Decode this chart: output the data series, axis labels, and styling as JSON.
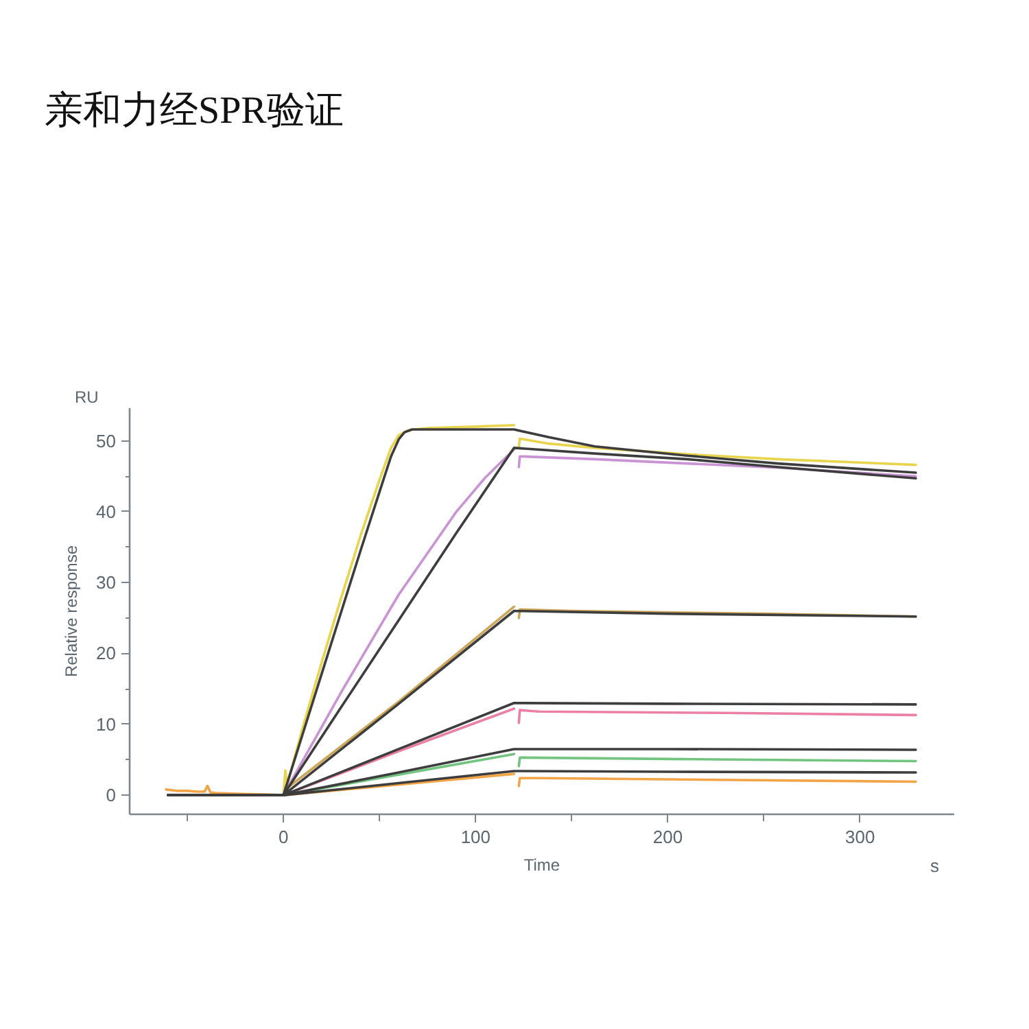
{
  "chart_data": {
    "type": "line",
    "title": "亲和力经SPR验证",
    "xlabel": "Time",
    "ylabel": "Relative response",
    "annotations": [
      "RU",
      "s"
    ],
    "xlim": [
      -80,
      349
    ],
    "ylim": [
      -2.7,
      54.6
    ],
    "xticks": [
      {
        "value": -50,
        "label": null
      },
      0,
      {
        "value": 50,
        "label": null
      },
      100,
      {
        "value": 150,
        "label": null
      },
      200,
      {
        "value": 250,
        "label": null
      },
      300
    ],
    "yticks": [
      0,
      {
        "value": 5,
        "label": null
      },
      10,
      {
        "value": 15,
        "label": null
      },
      20,
      {
        "value": 25,
        "label": null
      },
      30,
      {
        "value": 35,
        "label": null
      },
      40,
      {
        "value": 45,
        "label": null
      },
      50
    ],
    "line_style": "solid",
    "series": [
      {
        "color": "#e8d44d",
        "x": [
          -60,
          0,
          1,
          2,
          10,
          20,
          30,
          40,
          50,
          56,
          60,
          65,
          75,
          100,
          120,
          121,
          122.5,
          123,
          138,
          162,
          210,
          257,
          329
        ],
        "values": [
          0,
          0,
          3.5,
          1.5,
          9.5,
          18.8,
          27.8,
          36.5,
          44.5,
          49,
          50.8,
          51.5,
          51.8,
          52,
          52.2,
          null,
          49.2,
          50.3,
          49.6,
          49,
          48.1,
          47.4,
          46.6
        ]
      },
      {
        "color": "#c993d6",
        "x": [
          -60,
          0,
          30,
          60,
          90,
          105,
          120,
          121,
          122.5,
          123,
          162,
          210,
          257,
          329
        ],
        "values": [
          0,
          0,
          14.5,
          28.3,
          40,
          44.8,
          48.8,
          null,
          46.3,
          47.8,
          47.4,
          46.8,
          46.2,
          45
        ]
      },
      {
        "color": "#cfa75a",
        "x": [
          -60,
          0,
          2,
          60,
          120,
          121,
          122.5,
          123,
          150,
          250,
          329
        ],
        "values": [
          0,
          0,
          1,
          13.2,
          26.6,
          null,
          25,
          26.2,
          26,
          25.6,
          25.2
        ]
      },
      {
        "color": "#ec7fa6",
        "x": [
          -60,
          0,
          60,
          120,
          121,
          122.5,
          123,
          133,
          230,
          329
        ],
        "values": [
          0,
          0,
          6.2,
          12.2,
          null,
          10.2,
          12,
          11.8,
          11.6,
          11.3
        ]
      },
      {
        "color": "#72c47f",
        "x": [
          -60,
          0,
          60,
          120,
          121,
          122.5,
          123,
          200,
          329
        ],
        "values": [
          0,
          0,
          2.9,
          5.8,
          null,
          4.1,
          5.3,
          5.1,
          4.8
        ]
      },
      {
        "color": "#f2a447",
        "x": [
          -61,
          -55,
          -50,
          -45,
          -41,
          -39.5,
          -38,
          -35,
          -25,
          -10,
          0,
          60,
          120,
          121,
          122.5,
          123,
          133,
          329
        ],
        "values": [
          0.8,
          0.6,
          0.6,
          0.5,
          0.5,
          1.3,
          0.4,
          0.3,
          0.2,
          0.1,
          0,
          1.5,
          3,
          null,
          1.3,
          2.4,
          2.4,
          1.9
        ]
      },
      {
        "color": "#3d3d3d",
        "x": [
          -60,
          0,
          10,
          20,
          30,
          40,
          50,
          56,
          60,
          63,
          67,
          120,
          138,
          162,
          210,
          257,
          329
        ],
        "values": [
          0,
          0,
          8.6,
          17.2,
          25.8,
          34.4,
          42.8,
          47.8,
          50.2,
          51.2,
          51.6,
          51.6,
          50.5,
          49.2,
          47.9,
          46.8,
          45.5
        ]
      },
      {
        "color": "#3d3d3d",
        "x": [
          -60,
          0,
          30,
          60,
          90,
          120,
          162,
          210,
          257,
          329
        ],
        "values": [
          0,
          0,
          12.4,
          24.7,
          37,
          49,
          48.2,
          47.4,
          46.3,
          44.7
        ]
      },
      {
        "color": "#3d3d3d",
        "x": [
          -60,
          0,
          60,
          120,
          200,
          329
        ],
        "values": [
          0,
          0,
          12.9,
          26,
          25.6,
          25.2
        ]
      },
      {
        "color": "#3d3d3d",
        "x": [
          -60,
          0,
          60,
          120,
          200,
          329
        ],
        "values": [
          0,
          0,
          6.5,
          13,
          12.9,
          12.8
        ]
      },
      {
        "color": "#3d3d3d",
        "x": [
          -60,
          0,
          60,
          120,
          200,
          329
        ],
        "values": [
          0,
          0,
          3.2,
          6.5,
          6.5,
          6.4
        ]
      },
      {
        "color": "#3d3d3d",
        "x": [
          -60,
          0,
          60,
          120,
          200,
          329
        ],
        "values": [
          0,
          0,
          1.7,
          3.4,
          3.3,
          3.2
        ]
      }
    ]
  }
}
